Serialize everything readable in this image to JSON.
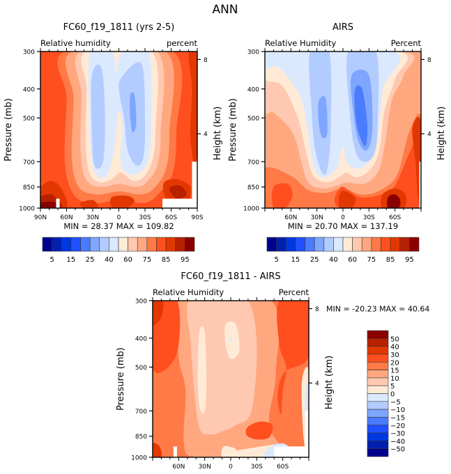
{
  "figure_title": "ANN",
  "chart_data": [
    {
      "type": "heatmap",
      "id": "model",
      "title": "FC60_f19_1811 (yrs 2-5)",
      "left_label": "Relative humidity",
      "right_label": "percent",
      "ylabel": "Pressure (mb)",
      "ylabel_right": "Height (km)",
      "xlabel": "",
      "x_ticks": [
        "90N",
        "60N",
        "30N",
        "0",
        "30S",
        "60S",
        "90S"
      ],
      "x_tick_values": [
        90,
        60,
        30,
        0,
        -30,
        -60,
        -90
      ],
      "xlim": [
        90,
        -90
      ],
      "y_ticks": [
        300,
        400,
        500,
        700,
        850,
        1000
      ],
      "ylim": [
        1000,
        300
      ],
      "y_ticks_right": [
        8,
        4
      ],
      "min_label": "MIN =",
      "min": "28.37",
      "max_label": "MAX =",
      "max": "109.82",
      "colorbar": {
        "orientation": "horizontal",
        "labels": [
          "5",
          "15",
          "25",
          "40",
          "60",
          "75",
          "85",
          "95"
        ],
        "levels": [
          5,
          10,
          15,
          20,
          25,
          30,
          40,
          50,
          60,
          70,
          75,
          80,
          85,
          90,
          95
        ]
      },
      "features": [
        {
          "region": "tropics 30N upper troposphere",
          "value_range": "25-30"
        },
        {
          "region": "subtropics 20S mid troposphere",
          "value_range": "20-25"
        },
        {
          "region": "equator 1000mb",
          "value_range": "85-90"
        },
        {
          "region": "80N-90N surface",
          "value_range": "95+"
        }
      ]
    },
    {
      "type": "heatmap",
      "id": "obs",
      "title": "AIRS",
      "left_label": "Relative Humidity",
      "right_label": "Percent",
      "ylabel": "Pressure (mb)",
      "ylabel_right": "Height (km)",
      "xlabel": "",
      "x_ticks": [
        "60N",
        "30N",
        "0",
        "30S",
        "60S"
      ],
      "x_tick_values": [
        60,
        30,
        0,
        -30,
        -60
      ],
      "xlim": [
        90,
        -90
      ],
      "y_ticks": [
        300,
        400,
        500,
        700,
        850,
        1000
      ],
      "ylim": [
        1000,
        300
      ],
      "y_ticks_right": [
        8,
        4
      ],
      "min_label": "MIN =",
      "min": "20.70",
      "max_label": "MAX =",
      "max": "137.19",
      "colorbar": {
        "orientation": "horizontal",
        "labels": [
          "5",
          "15",
          "25",
          "40",
          "60",
          "75",
          "85",
          "95"
        ],
        "levels": [
          5,
          10,
          15,
          20,
          25,
          30,
          40,
          50,
          60,
          70,
          75,
          80,
          85,
          90,
          95
        ]
      },
      "features": [
        {
          "region": "20S-30S mid troposphere",
          "value_range": "15-20"
        },
        {
          "region": "60S surface",
          "value_range": "95+"
        }
      ]
    },
    {
      "type": "heatmap",
      "id": "diff",
      "title": "FC60_f19_1811 - AIRS",
      "left_label": "Relative Humidity",
      "right_label": "Percent",
      "ylabel": "Pressure (mb)",
      "ylabel_right": "Height (km)",
      "xlabel": "",
      "x_ticks": [
        "60N",
        "30N",
        "0",
        "30S",
        "60S"
      ],
      "x_tick_values": [
        60,
        30,
        0,
        -30,
        -60
      ],
      "xlim": [
        90,
        -90
      ],
      "y_ticks": [
        300,
        400,
        500,
        700,
        850,
        1000
      ],
      "ylim": [
        1000,
        300
      ],
      "y_ticks_right": [
        8,
        4
      ],
      "min_label": "MIN =",
      "min": "-20.23",
      "max_label": "MAX =",
      "max": "40.64",
      "colorbar": {
        "orientation": "vertical",
        "labels": [
          "50",
          "40",
          "30",
          "20",
          "15",
          "10",
          "5",
          "0",
          "-5",
          "-10",
          "-15",
          "-20",
          "-30",
          "-40",
          "-50"
        ],
        "levels": [
          50,
          40,
          30,
          20,
          15,
          10,
          5,
          0,
          -5,
          -10,
          -15,
          -20,
          -30,
          -40,
          -50
        ]
      },
      "features": [
        {
          "region": "30S 850mb",
          "value_range": "20-30"
        },
        {
          "region": "60S-90S lower troposphere",
          "value_range": "-20 to 0"
        }
      ]
    }
  ],
  "palette": [
    "#00008f",
    "#0020b0",
    "#0038e0",
    "#2050ff",
    "#4a7cff",
    "#7fa6ff",
    "#b3ccff",
    "#dbe9ff",
    "#ffead6",
    "#ffc8b0",
    "#ffa880",
    "#ff7a47",
    "#ff4f1e",
    "#e23800",
    "#b82000",
    "#8a0000"
  ]
}
